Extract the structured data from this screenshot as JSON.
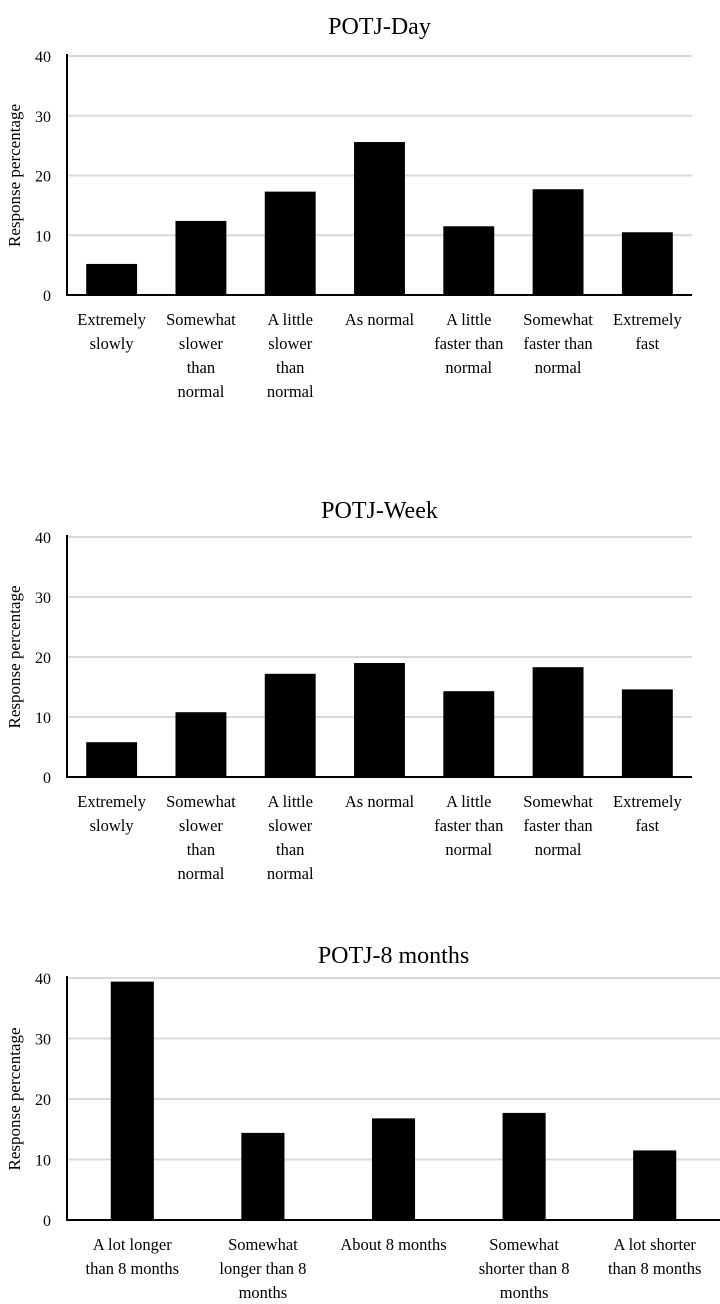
{
  "chart_data": [
    {
      "type": "bar",
      "title": "POTJ-Day",
      "ylabel": "Response percentage",
      "xlabel": "",
      "ylim": [
        0,
        40
      ],
      "yticks": [
        "0",
        "10",
        "20",
        "30",
        "40"
      ],
      "grid": true,
      "categories": [
        [
          "Extremely",
          "slowly"
        ],
        [
          "Somewhat",
          "slower",
          "than",
          "normal"
        ],
        [
          "A little",
          "slower",
          "than",
          "normal"
        ],
        [
          "As normal"
        ],
        [
          "A little",
          "faster than",
          "normal"
        ],
        [
          "Somewhat",
          "faster than",
          "normal"
        ],
        [
          "Extremely",
          "fast"
        ]
      ],
      "values": [
        5.2,
        12.4,
        17.3,
        25.6,
        11.5,
        17.7,
        10.5
      ],
      "color": "#000000"
    },
    {
      "type": "bar",
      "title": "POTJ-Week",
      "ylabel": "Response percentage",
      "xlabel": "",
      "ylim": [
        0,
        40
      ],
      "yticks": [
        "0",
        "10",
        "20",
        "30",
        "40"
      ],
      "grid": true,
      "categories": [
        [
          "Extremely",
          "slowly"
        ],
        [
          "Somewhat",
          "slower",
          "than",
          "normal"
        ],
        [
          "A little",
          "slower",
          "than",
          "normal"
        ],
        [
          "As normal"
        ],
        [
          "A little",
          "faster than",
          "normal"
        ],
        [
          "Somewhat",
          "faster than",
          "normal"
        ],
        [
          "Extremely",
          "fast"
        ]
      ],
      "values": [
        5.8,
        10.8,
        17.2,
        19.0,
        14.3,
        18.3,
        14.6
      ],
      "color": "#000000"
    },
    {
      "type": "bar",
      "title": "POTJ-8 months",
      "ylabel": "Response percentage",
      "xlabel": "",
      "ylim": [
        0,
        40
      ],
      "yticks": [
        "0",
        "10",
        "20",
        "30",
        "40"
      ],
      "grid": true,
      "categories": [
        [
          "A lot longer",
          "than 8 months"
        ],
        [
          "Somewhat",
          "longer than 8",
          "months"
        ],
        [
          "About 8 months"
        ],
        [
          "Somewhat",
          "shorter than 8",
          "months"
        ],
        [
          "A lot shorter",
          "than 8 months"
        ]
      ],
      "values": [
        39.4,
        14.4,
        16.8,
        17.7,
        11.5
      ],
      "color": "#000000"
    }
  ]
}
